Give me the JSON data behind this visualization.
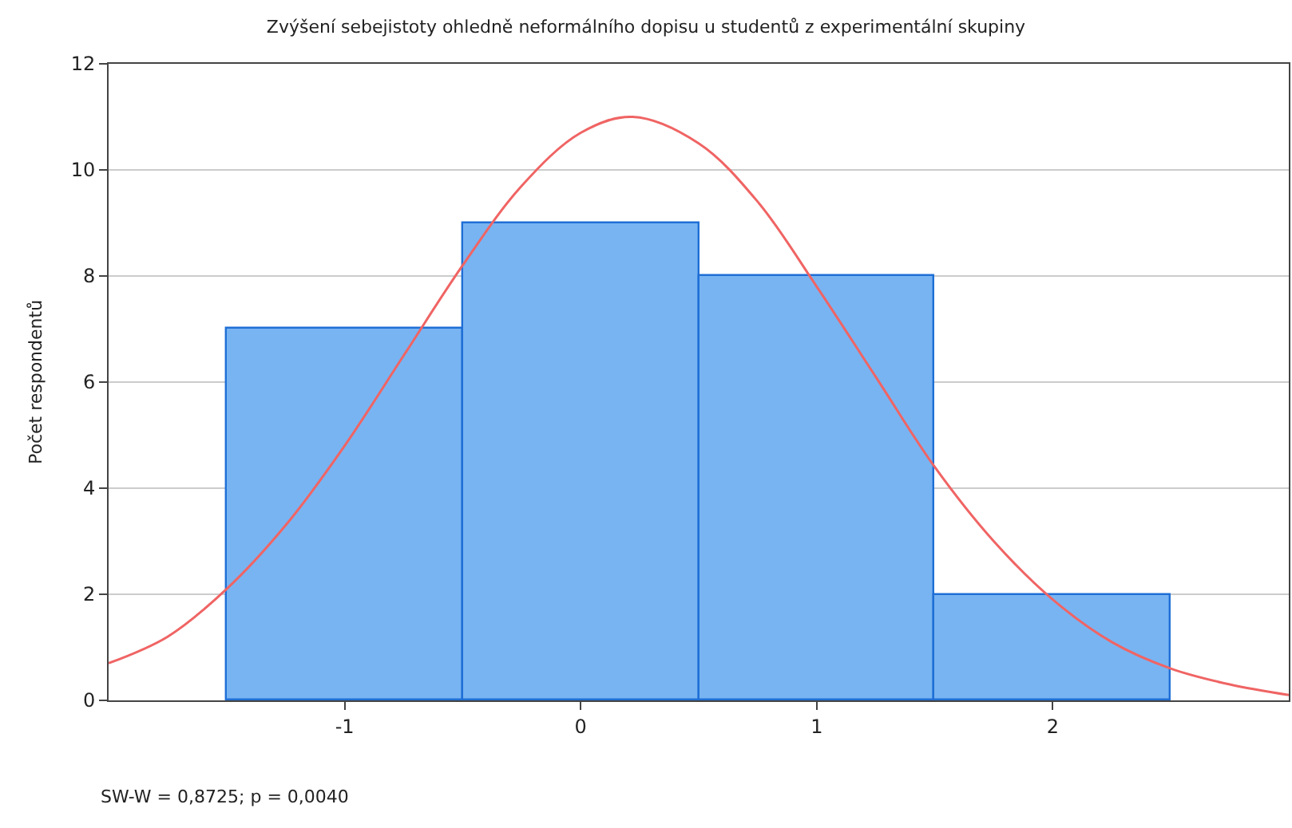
{
  "chart_data": {
    "type": "histogram",
    "title": "Zvýšení sebejistoty ohledně neformálního dopisu u studentů z experimentální skupiny",
    "ylabel": "Počet respondentů",
    "bins": [
      -1.5,
      -0.5,
      0.5,
      1.5,
      2.5
    ],
    "values": [
      7,
      9,
      8,
      2
    ],
    "color": "#78b4f2",
    "series": [
      {
        "type": "line",
        "color": "#f06464",
        "x": [
          -2,
          -1.75,
          -1.5,
          -1.25,
          -1,
          -0.75,
          -0.5,
          -0.25,
          0,
          0.22,
          0.5,
          0.75,
          1,
          1.25,
          1.5,
          1.75,
          2,
          2.25,
          2.5,
          2.75,
          3
        ],
        "values": [
          0.7,
          1.2,
          2.1,
          3.3,
          4.8,
          6.5,
          8.2,
          9.7,
          10.7,
          11.0,
          10.5,
          9.4,
          7.8,
          6.1,
          4.4,
          3.0,
          1.9,
          1.1,
          0.6,
          0.3,
          0.1
        ]
      }
    ],
    "xlim": [
      -2,
      3
    ],
    "xticks": [
      -1,
      0,
      1,
      2
    ],
    "ylim": [
      0,
      12
    ],
    "yticks": [
      0,
      2,
      4,
      6,
      8,
      10,
      12
    ],
    "grid": "y",
    "annotations": [
      "SW-W = 0,8725; p = 0,0040"
    ]
  }
}
